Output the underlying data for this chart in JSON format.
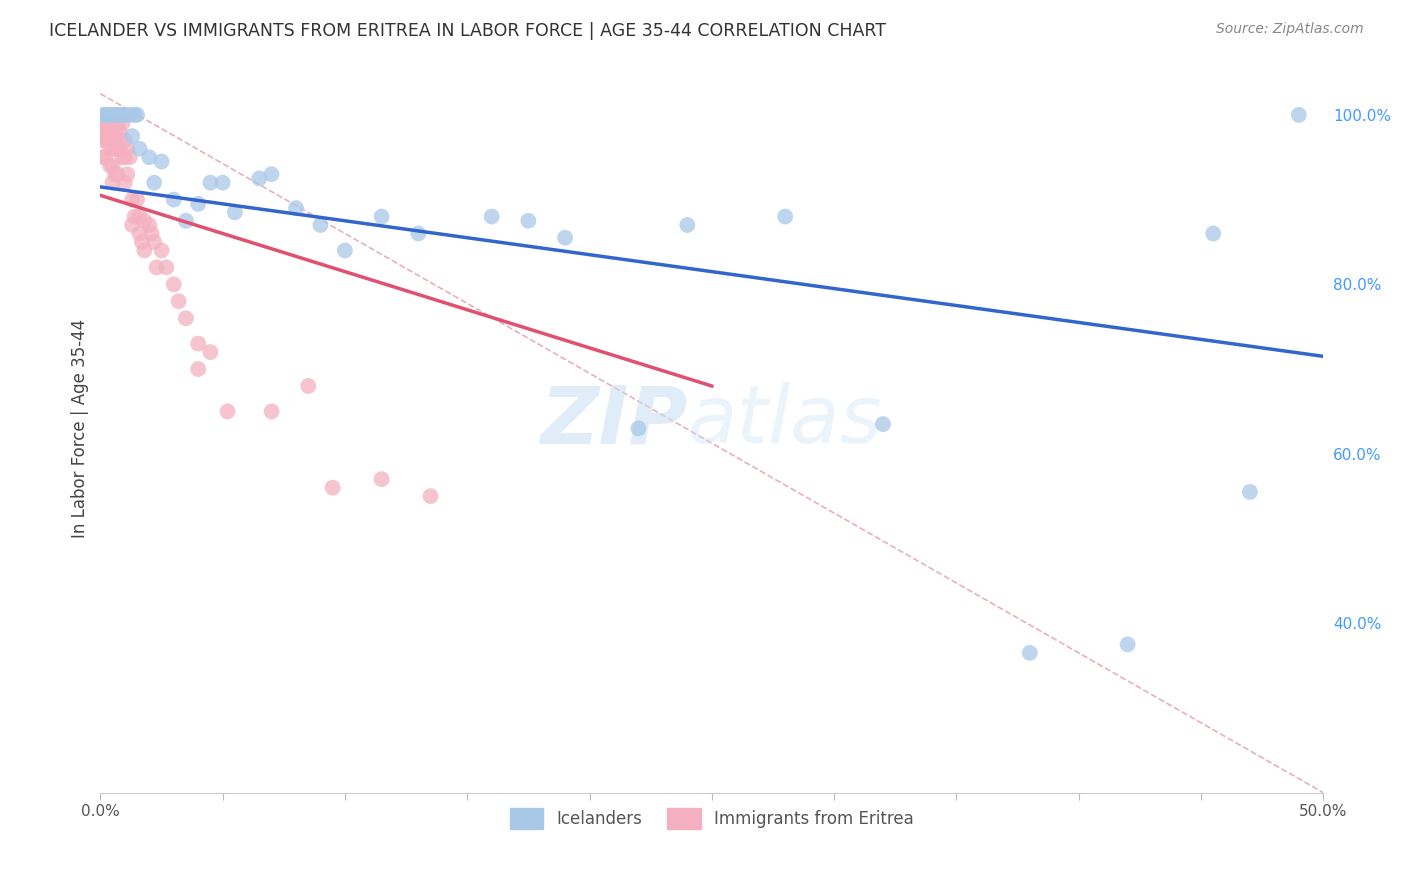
{
  "title": "ICELANDER VS IMMIGRANTS FROM ERITREA IN LABOR FORCE | AGE 35-44 CORRELATION CHART",
  "source": "Source: ZipAtlas.com",
  "ylabel": "In Labor Force | Age 35-44",
  "xlim": [
    0.0,
    0.5
  ],
  "ylim": [
    0.2,
    1.06
  ],
  "ytick_positions": [
    0.4,
    0.6,
    0.8,
    1.0
  ],
  "yticklabels_right": [
    "40.0%",
    "60.0%",
    "80.0%",
    "100.0%"
  ],
  "blue_color": "#a8c8e8",
  "pink_color": "#f4b0c0",
  "blue_line_color": "#3366cc",
  "pink_line_color": "#e05070",
  "gray_line_color": "#e8b0b8",
  "legend_label_blue": "Icelanders",
  "legend_label_pink": "Immigrants from Eritrea",
  "blue_line_x0": 0.0,
  "blue_line_y0": 0.915,
  "blue_line_x1": 0.5,
  "blue_line_y1": 0.715,
  "pink_line_x0": 0.0,
  "pink_line_y0": 0.905,
  "pink_line_x1": 0.25,
  "pink_line_y1": 0.68,
  "gray_line_x0": 0.0,
  "gray_line_y0": 1.025,
  "gray_line_x1": 0.5,
  "gray_line_y1": 0.2,
  "blue_x": [
    0.001,
    0.002,
    0.003,
    0.004,
    0.005,
    0.006,
    0.007,
    0.008,
    0.009,
    0.01,
    0.012,
    0.013,
    0.014,
    0.015,
    0.016,
    0.02,
    0.022,
    0.025,
    0.03,
    0.035,
    0.04,
    0.045,
    0.05,
    0.055,
    0.065,
    0.07,
    0.08,
    0.09,
    0.1,
    0.115,
    0.13,
    0.16,
    0.175,
    0.19,
    0.22,
    0.24,
    0.28,
    0.32,
    0.38,
    0.42,
    0.455,
    0.47,
    0.49
  ],
  "blue_y": [
    1.0,
    1.0,
    1.0,
    1.0,
    1.0,
    1.0,
    1.0,
    1.0,
    1.0,
    1.0,
    1.0,
    0.975,
    1.0,
    1.0,
    0.96,
    0.95,
    0.92,
    0.945,
    0.9,
    0.875,
    0.895,
    0.92,
    0.92,
    0.885,
    0.925,
    0.93,
    0.89,
    0.87,
    0.84,
    0.88,
    0.86,
    0.88,
    0.875,
    0.855,
    0.63,
    0.87,
    0.88,
    0.635,
    0.365,
    0.375,
    0.86,
    0.555,
    1.0
  ],
  "pink_x": [
    0.001,
    0.001,
    0.001,
    0.002,
    0.002,
    0.002,
    0.003,
    0.003,
    0.003,
    0.004,
    0.004,
    0.004,
    0.004,
    0.005,
    0.005,
    0.005,
    0.005,
    0.005,
    0.006,
    0.006,
    0.006,
    0.006,
    0.007,
    0.007,
    0.007,
    0.007,
    0.008,
    0.008,
    0.009,
    0.009,
    0.01,
    0.01,
    0.01,
    0.011,
    0.011,
    0.012,
    0.013,
    0.013,
    0.014,
    0.015,
    0.016,
    0.016,
    0.017,
    0.018,
    0.018,
    0.02,
    0.021,
    0.022,
    0.023,
    0.025,
    0.027,
    0.03,
    0.032,
    0.035,
    0.04,
    0.04,
    0.045,
    0.052,
    0.07,
    0.085,
    0.095,
    0.115,
    0.135
  ],
  "pink_y": [
    0.98,
    0.97,
    0.95,
    0.99,
    0.97,
    0.95,
    0.99,
    0.98,
    0.97,
    0.99,
    0.98,
    0.96,
    0.94,
    0.99,
    0.975,
    0.96,
    0.94,
    0.92,
    0.98,
    0.97,
    0.96,
    0.93,
    0.99,
    0.97,
    0.96,
    0.93,
    0.98,
    0.96,
    0.99,
    0.95,
    0.97,
    0.95,
    0.92,
    0.96,
    0.93,
    0.95,
    0.9,
    0.87,
    0.88,
    0.9,
    0.88,
    0.86,
    0.85,
    0.875,
    0.84,
    0.87,
    0.86,
    0.85,
    0.82,
    0.84,
    0.82,
    0.8,
    0.78,
    0.76,
    0.73,
    0.7,
    0.72,
    0.65,
    0.65,
    0.68,
    0.56,
    0.57,
    0.55
  ],
  "watermark_zip": "ZIP",
  "watermark_atlas": "atlas",
  "background_color": "#ffffff",
  "grid_color": "#e0e0e0"
}
